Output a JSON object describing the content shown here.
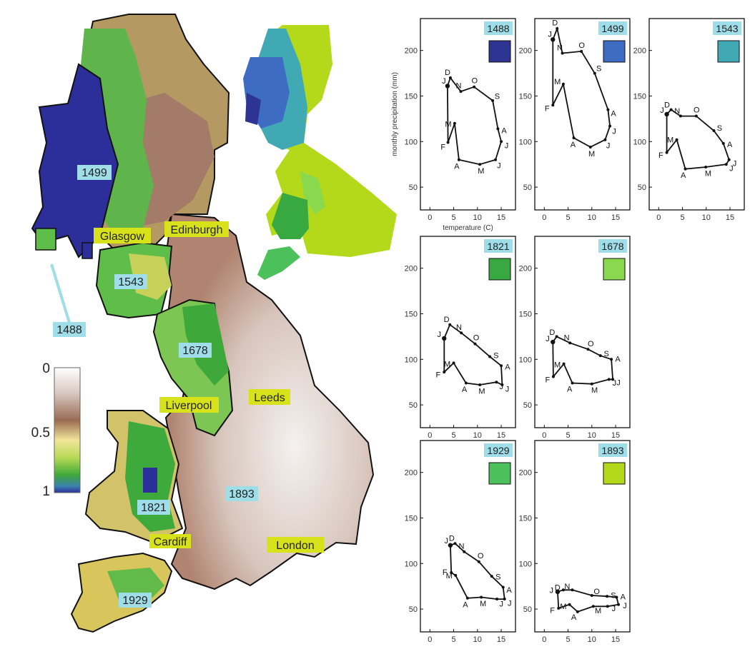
{
  "map": {
    "cities": [
      {
        "id": "glasgow",
        "text": "Glasgow"
      },
      {
        "id": "edinburgh",
        "text": "Edinburgh"
      },
      {
        "id": "liverpool",
        "text": "Liverpool"
      },
      {
        "id": "leeds",
        "text": "Leeds"
      },
      {
        "id": "cardiff",
        "text": "Cardiff"
      },
      {
        "id": "london",
        "text": "London"
      }
    ],
    "regions": [
      {
        "id": "r1488",
        "text": "1488"
      },
      {
        "id": "r1499",
        "text": "1499"
      },
      {
        "id": "r1543",
        "text": "1543"
      },
      {
        "id": "r1678",
        "text": "1678"
      },
      {
        "id": "r1821",
        "text": "1821"
      },
      {
        "id": "r1893",
        "text": "1893"
      },
      {
        "id": "r1929",
        "text": "1929"
      }
    ],
    "colorbar": {
      "ticks": [
        "0",
        "0.5",
        "1"
      ]
    },
    "colors": {
      "city_label_bg": "#d7e21a",
      "region_label_bg": "#9fdde8",
      "lowland": "#b88a78",
      "highland": "#4fae3a",
      "deep": "#2c2e9a"
    }
  },
  "chart_data": [
    {
      "type": "line",
      "title": "1488",
      "swatch": "#2e3492",
      "xlabel": "temperature (C)",
      "ylabel": "monthly precipitation (mm)",
      "xlim": [
        -2,
        18
      ],
      "ylim": [
        25,
        235
      ],
      "xticks": [
        0,
        5,
        10,
        15
      ],
      "yticks": [
        50,
        100,
        150,
        200
      ],
      "months": [
        "J",
        "F",
        "M",
        "A",
        "M",
        "J",
        "J",
        "A",
        "S",
        "O",
        "N",
        "D"
      ],
      "x": [
        3.7,
        3.8,
        5.2,
        6.1,
        10.5,
        13.8,
        15.0,
        14.3,
        13.2,
        9.3,
        6.5,
        4.3
      ],
      "y": [
        161,
        99,
        120,
        80,
        75,
        80,
        100,
        114,
        145,
        160,
        155,
        170
      ]
    },
    {
      "type": "line",
      "title": "1499",
      "swatch": "#3e6cc2",
      "xlabel": "",
      "ylabel": "",
      "xlim": [
        -2,
        18
      ],
      "ylim": [
        25,
        235
      ],
      "xticks": [
        0,
        5,
        10,
        15
      ],
      "yticks": [
        50,
        100,
        150,
        200
      ],
      "months": [
        "J",
        "F",
        "M",
        "A",
        "M",
        "J",
        "J",
        "A",
        "S",
        "O",
        "N",
        "D"
      ],
      "x": [
        1.8,
        1.8,
        4.0,
        6.2,
        9.7,
        12.8,
        13.8,
        13.4,
        10.6,
        7.8,
        3.8,
        2.7
      ],
      "y": [
        212,
        140,
        163,
        104,
        94,
        102,
        117,
        135,
        175,
        199,
        197,
        224
      ]
    },
    {
      "type": "line",
      "title": "1543",
      "swatch": "#41a9b4",
      "xlabel": "",
      "ylabel": "",
      "xlim": [
        -2,
        18
      ],
      "ylim": [
        25,
        235
      ],
      "xticks": [
        0,
        5,
        10,
        15
      ],
      "yticks": [
        50,
        100,
        150,
        200
      ],
      "months": [
        "J",
        "F",
        "M",
        "A",
        "M",
        "J",
        "J",
        "A",
        "S",
        "O",
        "N",
        "D"
      ],
      "x": [
        1.7,
        1.7,
        3.8,
        5.6,
        9.9,
        14.2,
        14.8,
        13.6,
        11.6,
        7.9,
        4.6,
        2.6
      ],
      "y": [
        130,
        88,
        102,
        70,
        72,
        75,
        80,
        98,
        112,
        128,
        128,
        135
      ]
    },
    {
      "type": "line",
      "title": "1821",
      "swatch": "#38a941",
      "xlabel": "",
      "ylabel": "",
      "xlim": [
        -2,
        18
      ],
      "ylim": [
        25,
        235
      ],
      "xticks": [
        0,
        5,
        10,
        15
      ],
      "yticks": [
        50,
        100,
        150,
        200
      ],
      "months": [
        "J",
        "F",
        "M",
        "A",
        "M",
        "J",
        "J",
        "A",
        "S",
        "O",
        "N",
        "D"
      ],
      "x": [
        3.0,
        3.0,
        5.0,
        7.6,
        10.5,
        14.0,
        15.2,
        15.0,
        12.6,
        9.5,
        6.6,
        4.2
      ],
      "y": [
        123,
        86,
        96,
        74,
        72,
        75,
        72,
        93,
        103,
        117,
        129,
        138
      ]
    },
    {
      "type": "line",
      "title": "1678",
      "swatch": "#8ad84d",
      "xlabel": "",
      "ylabel": "",
      "xlim": [
        -2,
        18
      ],
      "ylim": [
        25,
        235
      ],
      "xticks": [
        0,
        5,
        10,
        15
      ],
      "yticks": [
        50,
        100,
        150,
        200
      ],
      "months": [
        "J",
        "F",
        "M",
        "A",
        "M",
        "J",
        "J",
        "A",
        "S",
        "O",
        "N",
        "D"
      ],
      "x": [
        1.8,
        1.9,
        4.1,
        5.9,
        10.0,
        13.6,
        14.4,
        14.1,
        11.8,
        9.2,
        5.4,
        2.6
      ],
      "y": [
        119,
        81,
        95,
        74,
        73,
        78,
        78,
        100,
        104,
        111,
        118,
        125
      ]
    },
    {
      "type": "line",
      "title": "1929",
      "swatch": "#4cc05a",
      "xlabel": "",
      "ylabel": "",
      "xlim": [
        -2,
        18
      ],
      "ylim": [
        25,
        235
      ],
      "xticks": [
        0,
        5,
        10,
        15
      ],
      "yticks": [
        50,
        100,
        150,
        200
      ],
      "months": [
        "J",
        "F",
        "M",
        "A",
        "M",
        "J",
        "J",
        "A",
        "S",
        "O",
        "N",
        "D"
      ],
      "x": [
        4.3,
        4.5,
        5.4,
        7.9,
        10.8,
        14.1,
        15.7,
        15.4,
        13.0,
        10.3,
        7.2,
        5.3
      ],
      "y": [
        120,
        90,
        87,
        62,
        63,
        61,
        61,
        74,
        86,
        102,
        113,
        122
      ]
    },
    {
      "type": "line",
      "title": "1893",
      "swatch": "#b3d91a",
      "xlabel": "",
      "ylabel": "",
      "xlim": [
        -2,
        18
      ],
      "ylim": [
        25,
        235
      ],
      "xticks": [
        0,
        5,
        10,
        15
      ],
      "yticks": [
        50,
        100,
        150,
        200
      ],
      "months": [
        "J",
        "F",
        "M",
        "A",
        "M",
        "J",
        "J",
        "A",
        "S",
        "O",
        "N",
        "D"
      ],
      "x": [
        2.8,
        3.0,
        5.3,
        7.0,
        10.3,
        13.3,
        15.6,
        15.2,
        13.2,
        10.0,
        5.9,
        4.0
      ],
      "y": [
        69,
        51,
        55,
        47,
        53,
        53,
        55,
        63,
        64,
        65,
        71,
        71
      ]
    }
  ]
}
